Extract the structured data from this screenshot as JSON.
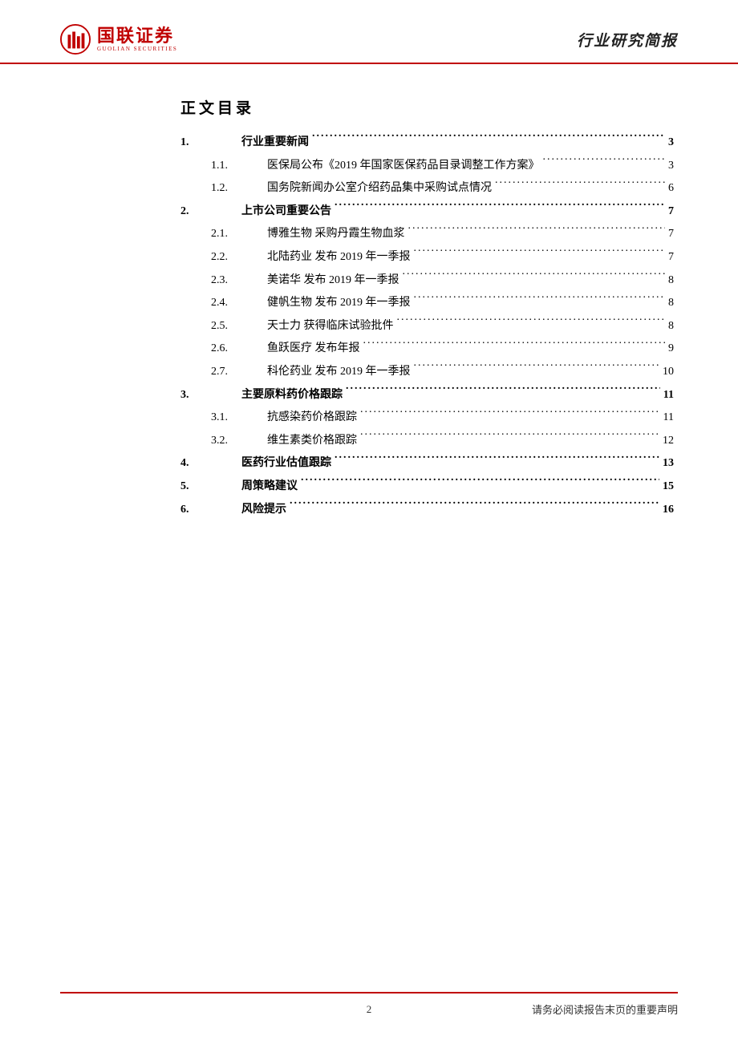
{
  "header": {
    "logo_cn": "国联证券",
    "logo_en": "GUOLIAN SECURITIES",
    "doc_type": "行业研究简报"
  },
  "toc": {
    "title": "正文目录",
    "items": [
      {
        "level": 1,
        "num": "1.",
        "label": "行业重要新闻",
        "page": "3"
      },
      {
        "level": 2,
        "num": "1.1.",
        "label": "医保局公布《2019 年国家医保药品目录调整工作方案》",
        "page": "3"
      },
      {
        "level": 2,
        "num": "1.2.",
        "label": "国务院新闻办公室介绍药品集中采购试点情况",
        "page": "6"
      },
      {
        "level": 1,
        "num": "2.",
        "label": "上市公司重要公告",
        "page": "7"
      },
      {
        "level": 2,
        "num": "2.1.",
        "label": "博雅生物  采购丹霞生物血浆",
        "page": "7"
      },
      {
        "level": 2,
        "num": "2.2.",
        "label": "北陆药业  发布 2019 年一季报",
        "page": "7"
      },
      {
        "level": 2,
        "num": "2.3.",
        "label": "美诺华  发布 2019 年一季报",
        "page": "8"
      },
      {
        "level": 2,
        "num": "2.4.",
        "label": "健帆生物  发布 2019 年一季报",
        "page": "8"
      },
      {
        "level": 2,
        "num": "2.5.",
        "label": "天士力  获得临床试验批件",
        "page": "8"
      },
      {
        "level": 2,
        "num": "2.6.",
        "label": "鱼跃医疗  发布年报",
        "page": "9"
      },
      {
        "level": 2,
        "num": "2.7.",
        "label": "科伦药业  发布 2019 年一季报",
        "page": "10"
      },
      {
        "level": 1,
        "num": "3.",
        "label": "主要原料药价格跟踪",
        "page": "11"
      },
      {
        "level": 2,
        "num": "3.1.",
        "label": "抗感染药价格跟踪",
        "page": "11"
      },
      {
        "level": 2,
        "num": "3.2.",
        "label": "维生素类价格跟踪",
        "page": "12"
      },
      {
        "level": 1,
        "num": "4.",
        "label": "医药行业估值跟踪",
        "page": "13"
      },
      {
        "level": 1,
        "num": "5.",
        "label": "周策略建议",
        "page": "15"
      },
      {
        "level": 1,
        "num": "6.",
        "label": "风险提示",
        "page": "16"
      }
    ]
  },
  "footer": {
    "page_num": "2",
    "note": "请务必阅读报告末页的重要声明"
  },
  "colors": {
    "brand_red": "#c00000",
    "text": "#000000",
    "background": "#ffffff"
  }
}
